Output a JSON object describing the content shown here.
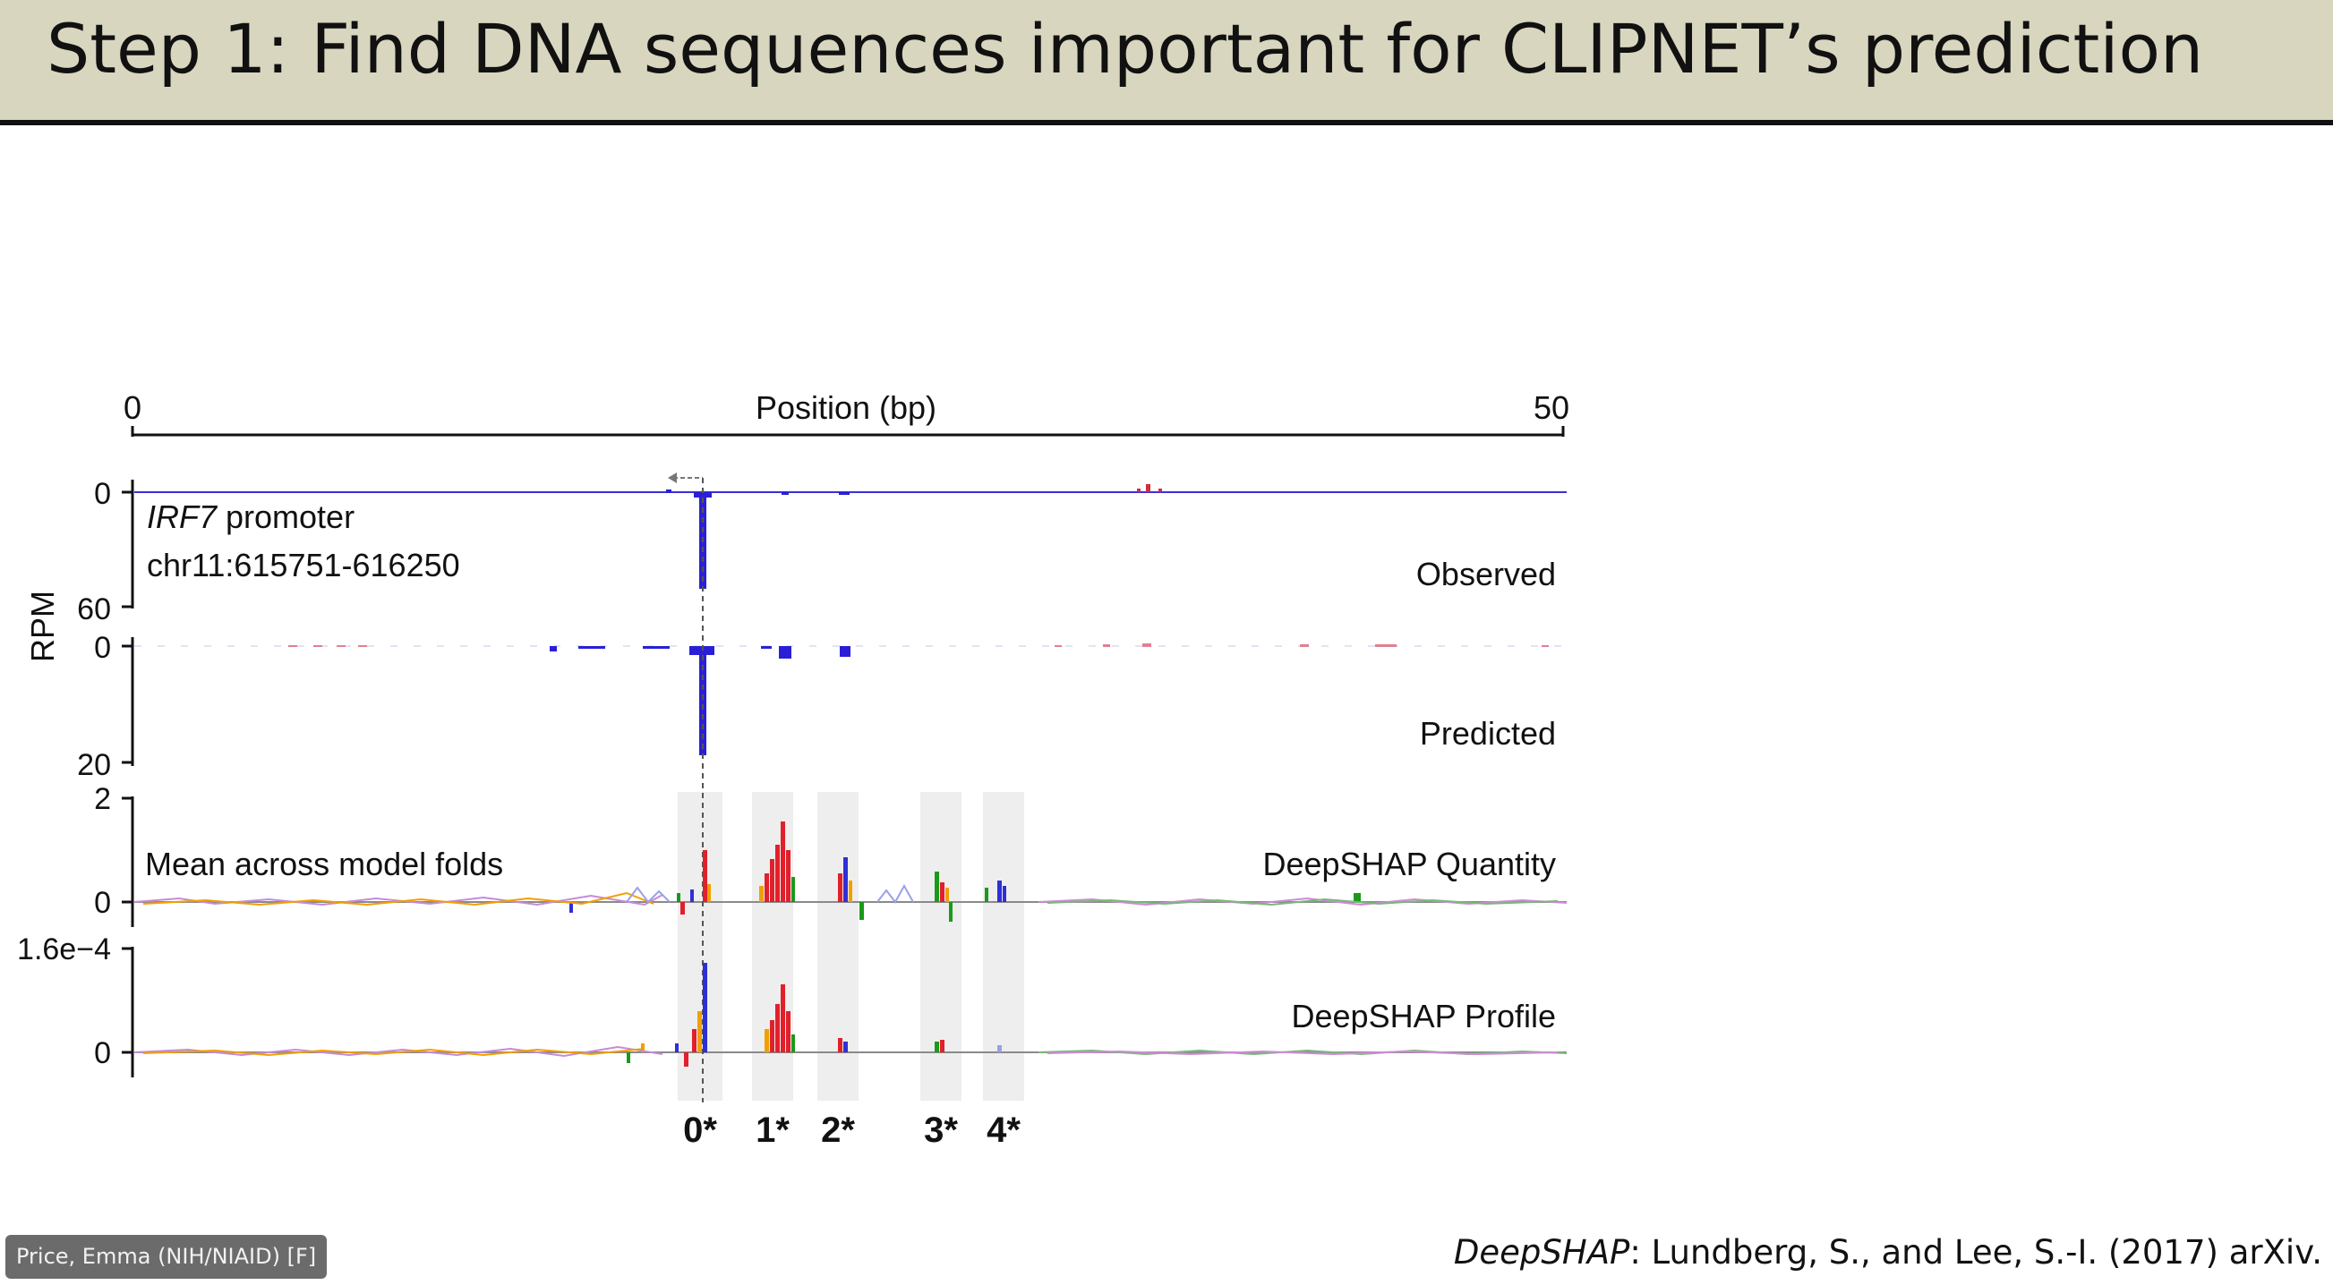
{
  "slide": {
    "title": "Step 1: Find DNA sequences important for CLIPNET’s prediction"
  },
  "figure": {
    "x_axis": {
      "label": "Position (bp)",
      "start_label": "0",
      "end_label": "50"
    },
    "y_axis_label": "RPM",
    "locus": {
      "gene": "IRF7",
      "gene_suffix": " promoter",
      "coordinates": "chr11:615751-616250"
    },
    "fold_note": "Mean across model folds",
    "tracks": [
      {
        "name": "Observed",
        "tick_top": "0",
        "tick_bottom": "60"
      },
      {
        "name": "Predicted",
        "tick_top": "0",
        "tick_bottom": "20"
      },
      {
        "name": "DeepSHAP Quantity",
        "tick_top": "2",
        "tick_bottom": "0"
      },
      {
        "name": "DeepSHAP Profile",
        "tick_top": "1.6e−4",
        "tick_bottom": "0"
      }
    ],
    "motifs": [
      "0*",
      "1*",
      "2*",
      "3*",
      "4*"
    ],
    "colors": {
      "signal": "#2a1fd6",
      "motif_shade": "#eeeeee",
      "A": "#1a9a1a",
      "C": "#2f2fd8",
      "G": "#f0a000",
      "T": "#e0202a"
    }
  },
  "presenter": {
    "name": "Price, Emma (NIH/NIAID) [F]"
  },
  "citation": {
    "work": "DeepSHAP",
    "text": ": Lundberg, S., and Lee, S.-I. (2017) arXiv."
  }
}
